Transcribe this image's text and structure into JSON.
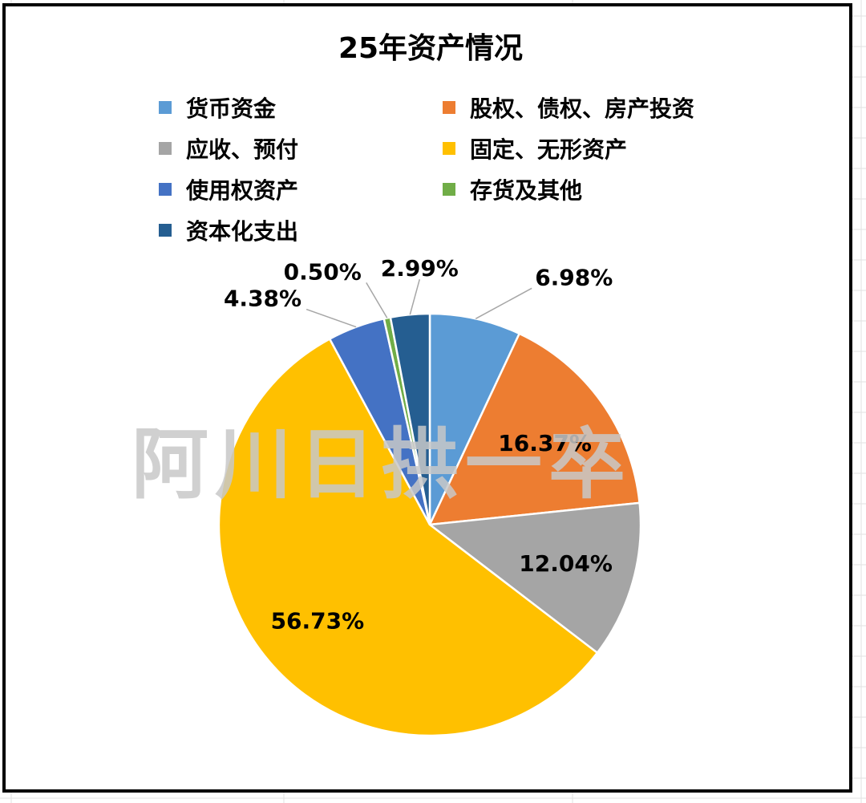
{
  "chart_data": {
    "type": "pie",
    "title": "25年资产情况",
    "categories": [
      "货币资金",
      "股权、债权、房产投资",
      "应收、预付",
      "固定、无形资产",
      "使用权资产",
      "存货及其他",
      "资本化支出"
    ],
    "values": [
      6.98,
      16.37,
      12.04,
      56.73,
      4.38,
      0.5,
      2.99
    ],
    "labels": [
      "6.98%",
      "16.37%",
      "12.04%",
      "56.73%",
      "4.38%",
      "0.50%",
      "2.99%"
    ],
    "colors": [
      "#5B9BD5",
      "#ED7D31",
      "#A5A5A5",
      "#FFC000",
      "#4472C4",
      "#70AD47",
      "#255E91"
    ],
    "legend_position": "top",
    "watermark": "阿川日拱一卒"
  }
}
